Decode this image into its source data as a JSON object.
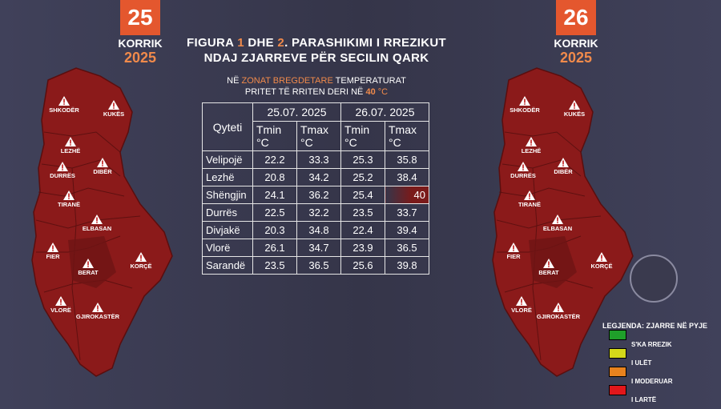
{
  "left_date": {
    "day": "25",
    "month": "KORRIK",
    "year": "2025"
  },
  "right_date": {
    "day": "26",
    "month": "KORRIK",
    "year": "2025"
  },
  "title": {
    "part1": "FIGURA ",
    "num1": "1",
    "part2": " DHE ",
    "num2": "2",
    "part3": ". PARASHIKIMI I RREZIKUT",
    "line2": "NDAJ ZJARREVE PËR SECILIN QARK"
  },
  "subtitle": {
    "part1": "NË ",
    "highlight": "ZONAT BREGDETARE",
    "part2": " TEMPERATURAT",
    "line2a": "PRITET TË RRITEN DERI NË ",
    "temp": "40",
    "unit": " °C"
  },
  "table": {
    "city_header": "Qyteti",
    "date1": "25.07. 2025",
    "date2": "26.07. 2025",
    "tmin": "Tmin °C",
    "tmax": "Tmax °C",
    "rows": [
      {
        "city": "Velipojë",
        "v": [
          "22.2",
          "33.3",
          "25.3",
          "35.8"
        ]
      },
      {
        "city": "Lezhë",
        "v": [
          "20.8",
          "34.2",
          "25.2",
          "38.4"
        ]
      },
      {
        "city": "Shëngjin",
        "v": [
          "24.1",
          "36.2",
          "25.4",
          "40"
        ]
      },
      {
        "city": "Durrës",
        "v": [
          "22.5",
          "32.2",
          "23.5",
          "33.7"
        ]
      },
      {
        "city": "Divjakë",
        "v": [
          "20.3",
          "34.8",
          "22.4",
          "39.4"
        ]
      },
      {
        "city": "Vlorë",
        "v": [
          "26.1",
          "34.7",
          "23.9",
          "36.5"
        ]
      },
      {
        "city": "Sarandë",
        "v": [
          "23.5",
          "36.5",
          "25.6",
          "39.8"
        ]
      }
    ]
  },
  "regions": [
    "SHKODËR",
    "KUKËS",
    "LEZHË",
    "DIBËR",
    "DURRËS",
    "TIRANË",
    "ELBASAN",
    "FIER",
    "BERAT",
    "KORÇË",
    "VLORË",
    "GJIROKASTËR"
  ],
  "legend": {
    "title": "LEGJENDA: ZJARRE NË PYJE",
    "items": [
      {
        "label": "S'KA RREZIK",
        "color": "#1fa02a"
      },
      {
        "label": "I ULËT",
        "color": "#d4d91a"
      },
      {
        "label": "I MODERUAR",
        "color": "#e8821e"
      },
      {
        "label": "I LARTË",
        "color": "#e2171b"
      }
    ]
  },
  "colors": {
    "risk_high": "#8b1a1a",
    "accent": "#e4572e"
  }
}
